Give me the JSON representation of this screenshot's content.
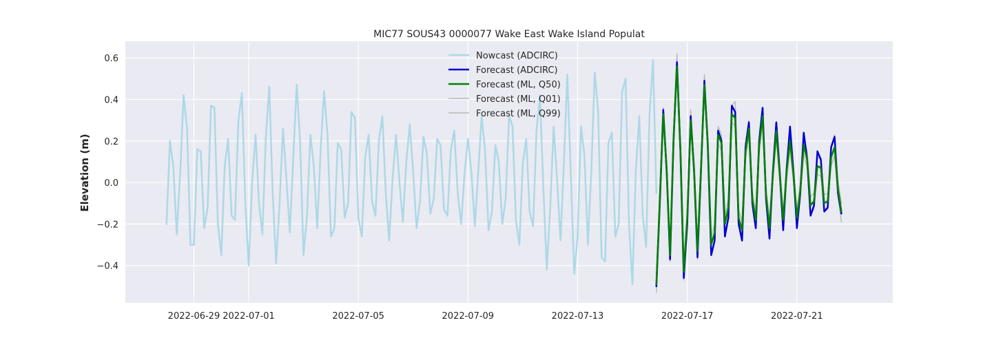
{
  "chart_data": {
    "type": "line",
    "title": "MIC77 SOUS43 0000077 Wake East Wake Island Populat",
    "xlabel": "",
    "ylabel": "Elevation (m)",
    "xlim": [
      "2022-06-26T12:00",
      "2022-07-24T12:00"
    ],
    "ylim": [
      -0.58,
      0.68
    ],
    "x_ticks": [
      "2022-06-29",
      "2022-07-01",
      "2022-07-05",
      "2022-07-09",
      "2022-07-13",
      "2022-07-17",
      "2022-07-21"
    ],
    "y_ticks": [
      "−0.4",
      "−0.2",
      "0.0",
      "0.2",
      "0.4",
      "0.6"
    ],
    "y_tick_values": [
      -0.4,
      -0.2,
      0.0,
      0.2,
      0.4,
      0.6
    ],
    "grid": true,
    "legend_position": "top-center",
    "series": [
      {
        "name": "Nowcast (ADCIRC)",
        "color": "#add8e6",
        "width": 2.5,
        "x_start": "2022-06-28T00:00",
        "step_hours": 3,
        "values": [
          -0.2,
          0.2,
          0.08,
          -0.25,
          0.05,
          0.42,
          0.26,
          -0.3,
          -0.3,
          0.16,
          0.15,
          -0.22,
          -0.12,
          0.37,
          0.36,
          -0.2,
          -0.35,
          0.08,
          0.21,
          -0.16,
          -0.18,
          0.3,
          0.43,
          -0.1,
          -0.4,
          0.0,
          0.23,
          -0.1,
          -0.25,
          0.22,
          0.46,
          -0.05,
          -0.39,
          -0.1,
          0.26,
          0.02,
          -0.24,
          0.12,
          0.47,
          0.2,
          -0.35,
          -0.16,
          0.23,
          0.08,
          -0.22,
          0.16,
          0.44,
          0.23,
          -0.26,
          -0.22,
          0.19,
          0.16,
          -0.17,
          -0.1,
          0.34,
          0.31,
          -0.17,
          -0.26,
          0.12,
          0.23,
          -0.09,
          -0.16,
          0.2,
          0.32,
          -0.05,
          -0.28,
          0.02,
          0.23,
          0.0,
          -0.19,
          0.1,
          0.28,
          0.05,
          -0.22,
          -0.09,
          0.22,
          0.14,
          -0.15,
          -0.08,
          0.21,
          0.18,
          -0.13,
          -0.16,
          0.16,
          0.25,
          -0.05,
          -0.2,
          0.04,
          0.21,
          0.05,
          -0.21,
          0.05,
          0.32,
          0.15,
          -0.23,
          -0.14,
          0.18,
          0.1,
          -0.2,
          -0.08,
          0.32,
          0.27,
          -0.18,
          -0.3,
          0.09,
          0.21,
          -0.14,
          -0.21,
          0.25,
          0.42,
          -0.02,
          -0.42,
          -0.12,
          0.27,
          0.02,
          -0.28,
          0.1,
          0.52,
          0.05,
          -0.44,
          -0.26,
          0.27,
          0.13,
          -0.3,
          0.06,
          0.53,
          0.34,
          -0.36,
          -0.38,
          0.19,
          0.24,
          -0.26,
          -0.2,
          0.44,
          0.5,
          -0.2,
          -0.49,
          0.06,
          0.32,
          -0.16,
          -0.31,
          0.33,
          0.59,
          -0.05
        ]
      },
      {
        "name": "Forecast (ADCIRC)",
        "color": "#0000cd",
        "width": 2.5,
        "x_start": "2022-07-15T21:00",
        "step_hours": 3,
        "values": [
          -0.5,
          -0.1,
          0.35,
          0.05,
          -0.37,
          0.2,
          0.58,
          0.15,
          -0.46,
          -0.2,
          0.32,
          0.05,
          -0.36,
          0.05,
          0.49,
          0.18,
          -0.35,
          -0.28,
          0.25,
          0.2,
          -0.26,
          -0.17,
          0.37,
          0.34,
          -0.2,
          -0.28,
          0.17,
          0.29,
          -0.1,
          -0.22,
          0.2,
          0.36,
          -0.08,
          -0.27,
          0.05,
          0.29,
          0.05,
          -0.23,
          0.06,
          0.27,
          0.05,
          -0.22,
          -0.05,
          0.24,
          0.11,
          -0.16,
          -0.11,
          0.15,
          0.11,
          -0.14,
          -0.12,
          0.17,
          0.22,
          -0.05,
          -0.15
        ]
      },
      {
        "name": "Forecast (ML, Q50)",
        "color": "#008000",
        "width": 2.5,
        "x_start": "2022-07-15T21:00",
        "step_hours": 3,
        "values": [
          -0.49,
          -0.08,
          0.33,
          0.06,
          -0.35,
          0.21,
          0.56,
          0.16,
          -0.43,
          -0.17,
          0.3,
          0.06,
          -0.33,
          0.06,
          0.47,
          0.19,
          -0.3,
          -0.24,
          0.23,
          0.19,
          -0.2,
          -0.12,
          0.33,
          0.31,
          -0.17,
          -0.23,
          0.15,
          0.26,
          -0.08,
          -0.18,
          0.18,
          0.32,
          -0.06,
          -0.22,
          0.04,
          0.25,
          0.04,
          -0.18,
          0.05,
          0.2,
          0.04,
          -0.17,
          -0.04,
          0.18,
          0.11,
          -0.11,
          -0.09,
          0.08,
          0.07,
          -0.1,
          -0.09,
          0.12,
          0.17,
          -0.03,
          -0.14
        ]
      },
      {
        "name": "Forecast (ML, Q01)",
        "color": "#b8b8b8",
        "width": 1.4,
        "x_start": "2022-07-15T21:00",
        "step_hours": 3,
        "values": [
          -0.53,
          -0.12,
          0.31,
          0.02,
          -0.38,
          0.17,
          0.54,
          0.12,
          -0.47,
          -0.21,
          0.28,
          0.02,
          -0.37,
          0.02,
          0.44,
          0.15,
          -0.34,
          -0.28,
          0.19,
          0.15,
          -0.24,
          -0.16,
          0.29,
          0.27,
          -0.21,
          -0.27,
          0.11,
          0.22,
          -0.12,
          -0.22,
          0.14,
          0.28,
          -0.1,
          -0.26,
          0.0,
          0.21,
          0.0,
          -0.22,
          0.01,
          0.16,
          0.0,
          -0.21,
          -0.08,
          0.14,
          0.07,
          -0.15,
          -0.13,
          0.04,
          0.03,
          -0.14,
          -0.13,
          0.08,
          0.13,
          -0.07,
          -0.19
        ]
      },
      {
        "name": "Forecast (ML, Q99)",
        "color": "#b8b8b8",
        "width": 1.4,
        "x_start": "2022-07-15T21:00",
        "step_hours": 3,
        "values": [
          -0.45,
          -0.04,
          0.36,
          0.1,
          -0.31,
          0.25,
          0.62,
          0.2,
          -0.39,
          -0.13,
          0.35,
          0.1,
          -0.29,
          0.1,
          0.52,
          0.23,
          -0.26,
          -0.2,
          0.27,
          0.23,
          -0.16,
          -0.08,
          0.37,
          0.39,
          -0.13,
          -0.19,
          0.19,
          0.3,
          -0.04,
          -0.14,
          0.22,
          0.36,
          -0.02,
          -0.18,
          0.08,
          0.29,
          0.08,
          -0.14,
          0.09,
          0.24,
          0.08,
          -0.13,
          0.0,
          0.22,
          0.15,
          -0.07,
          -0.05,
          0.12,
          0.11,
          -0.06,
          -0.05,
          0.16,
          0.23,
          0.01,
          -0.1
        ]
      }
    ]
  }
}
